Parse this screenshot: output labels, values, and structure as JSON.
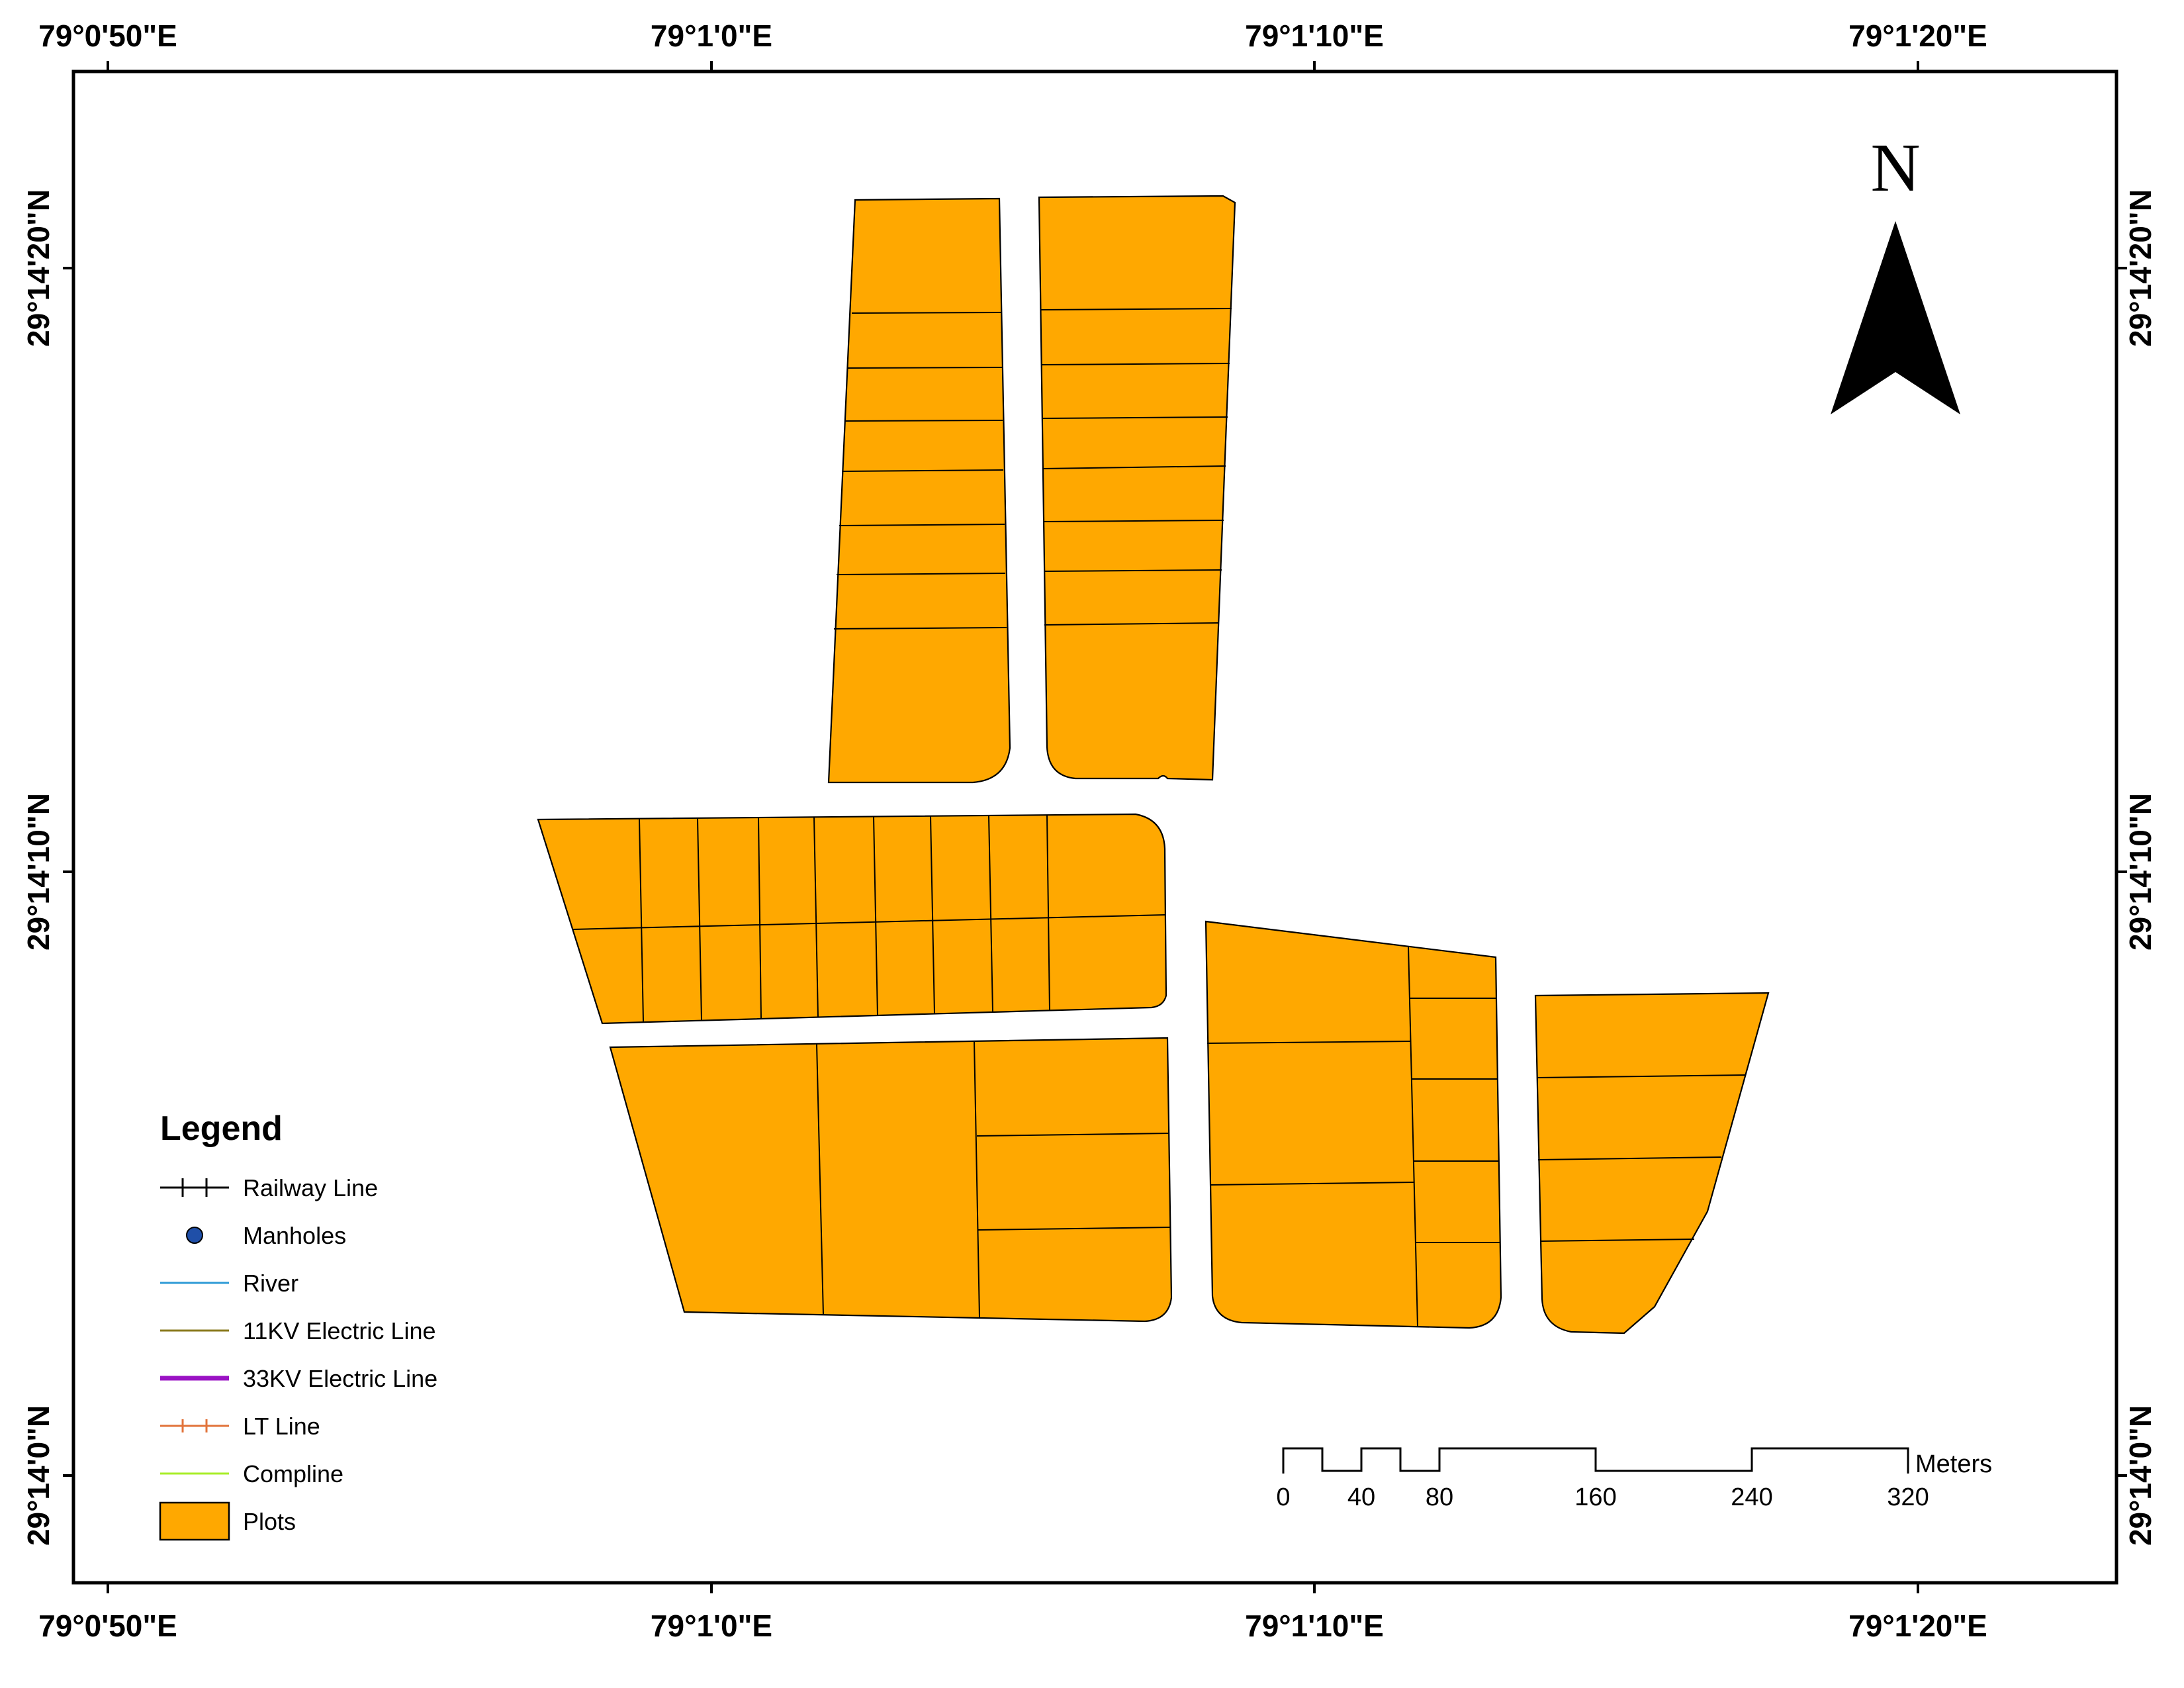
{
  "map": {
    "colors": {
      "plots": "#FFA800",
      "railway": "#000000",
      "manholes": "#1F4FA8",
      "river": "#2F9BD6",
      "electric_11kv": "#8A7A1E",
      "electric_33kv": "#9A12C4",
      "lt_line": "#E2733A",
      "compline": "#A8EE2A"
    },
    "longitude_ticks": [
      "79°0'50\"E",
      "79°1'0\"E",
      "79°1'10\"E",
      "79°1'20\"E"
    ],
    "latitude_ticks": [
      "29°14'20\"N",
      "29°14'10\"N",
      "29°14'0\"N"
    ],
    "north_arrow": {
      "label": "N",
      "icon": "north-arrow-icon"
    },
    "legend": {
      "title": "Legend",
      "items": [
        {
          "label": "Railway Line",
          "symbol": "railway"
        },
        {
          "label": "Manholes",
          "symbol": "point"
        },
        {
          "label": "River",
          "symbol": "line-river"
        },
        {
          "label": "11KV Electric Line",
          "symbol": "line-11kv"
        },
        {
          "label": "33KV Electric Line",
          "symbol": "line-33kv"
        },
        {
          "label": "LT Line",
          "symbol": "lt-line"
        },
        {
          "label": "Compline",
          "symbol": "line-compline"
        },
        {
          "label": "Plots",
          "symbol": "polygon"
        }
      ]
    },
    "scale_bar": {
      "unit": "Meters",
      "labels": [
        "0",
        "40",
        "80",
        "160",
        "240",
        "320"
      ]
    }
  }
}
